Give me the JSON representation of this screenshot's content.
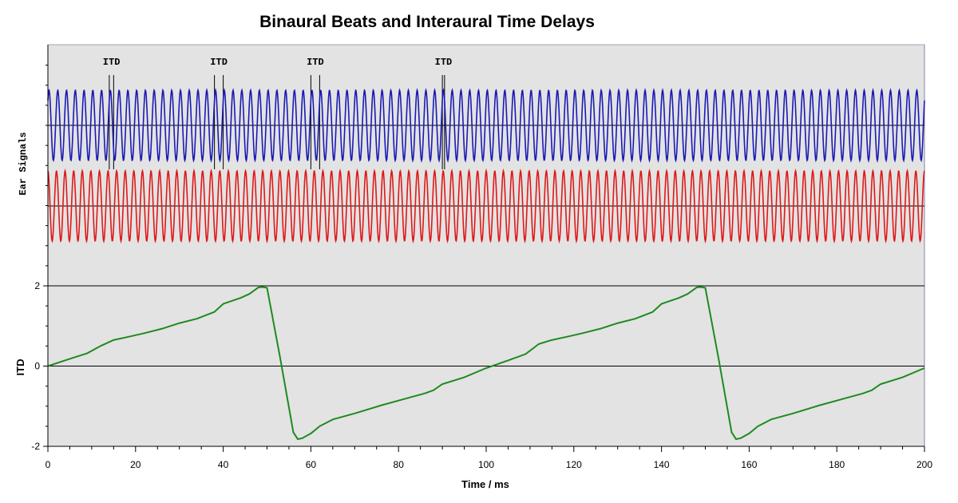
{
  "chart_data": {
    "type": "line",
    "title": "Binaural Beats and Interaural Time Delays",
    "xlabel": "Time / ms",
    "xlim": [
      0,
      200
    ],
    "xticks": [
      "0",
      "20",
      "40",
      "60",
      "80",
      "100",
      "120",
      "140",
      "160",
      "180",
      "200"
    ],
    "grid": false,
    "panels": [
      {
        "ylabel": "Ear Signals",
        "series": [
          {
            "color": "#1a1ab4",
            "freq_khz": 0.5,
            "phase_rad": 0.785
          },
          {
            "color": "#e01818",
            "freq_khz": 0.51,
            "phase_rad": 0.0
          }
        ],
        "annotations": [
          {
            "label": "ITD",
            "x_start": 14.0,
            "x_end": 15.0
          },
          {
            "label": "ITD",
            "x_start": 38.0,
            "x_end": 40.0
          },
          {
            "label": "ITD",
            "x_start": 60.0,
            "x_end": 62.0
          },
          {
            "label": "ITD",
            "x_start": 90.0,
            "x_end": 90.5
          }
        ]
      },
      {
        "ylabel": "ITD",
        "ylim": [
          -2,
          2
        ],
        "yticks": [
          "-2",
          "0",
          "2"
        ],
        "series": [
          {
            "color": "#1f8a1f",
            "x": [
              0,
              5,
              9,
              12,
              15,
              18,
              22,
              26,
              30,
              34,
              38,
              40,
              44,
              46,
              48,
              49,
              50,
              53,
              56,
              57,
              58,
              60,
              62,
              65,
              70,
              76,
              82,
              86,
              88,
              90,
              95,
              100,
              105,
              109,
              112,
              115,
              118,
              122,
              126,
              130,
              134,
              138,
              140,
              144,
              146,
              148,
              149,
              150,
              153,
              156,
              157,
              158,
              160,
              162,
              165,
              170,
              176,
              182,
              186,
              188,
              190,
              195,
              200
            ],
            "y": [
              0.0,
              0.18,
              0.32,
              0.5,
              0.65,
              0.72,
              0.82,
              0.93,
              1.07,
              1.18,
              1.35,
              1.55,
              1.7,
              1.8,
              1.96,
              1.97,
              1.95,
              0.2,
              -1.65,
              -1.82,
              -1.8,
              -1.68,
              -1.5,
              -1.33,
              -1.18,
              -0.98,
              -0.8,
              -0.68,
              -0.6,
              -0.45,
              -0.28,
              -0.05,
              0.14,
              0.3,
              0.55,
              0.65,
              0.72,
              0.82,
              0.93,
              1.07,
              1.18,
              1.35,
              1.55,
              1.7,
              1.8,
              1.96,
              1.97,
              1.95,
              0.2,
              -1.65,
              -1.82,
              -1.8,
              -1.68,
              -1.5,
              -1.33,
              -1.18,
              -0.98,
              -0.8,
              -0.68,
              -0.6,
              -0.45,
              -0.28,
              -0.05
            ]
          }
        ]
      }
    ]
  }
}
